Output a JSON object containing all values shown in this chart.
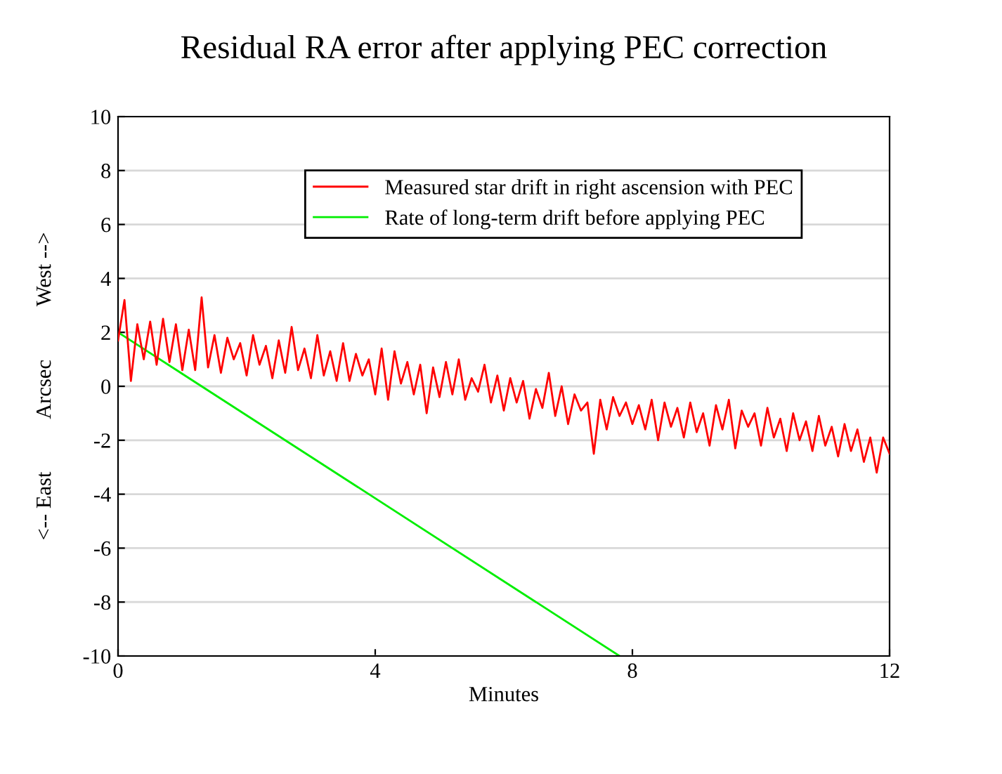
{
  "chart_data": {
    "type": "line",
    "title": "Residual RA error after applying PEC correction",
    "xlabel": "Minutes",
    "ylabel": "<-- East          Arcsec          West -->",
    "xlim": [
      0,
      12
    ],
    "ylim": [
      -10,
      10
    ],
    "xticks": [
      0,
      4,
      8,
      12
    ],
    "yticks": [
      -10,
      -8,
      -6,
      -4,
      -2,
      0,
      2,
      4,
      6,
      8,
      10
    ],
    "grid": "y",
    "legend": "top right",
    "marker": "none",
    "line_style": "solid",
    "series": [
      {
        "name": "Measured star drift in right ascension with PEC",
        "color": "#ff0000",
        "x": [
          0,
          0.1,
          0.2,
          0.3,
          0.4,
          0.5,
          0.6,
          0.7,
          0.8,
          0.9,
          1.0,
          1.1,
          1.2,
          1.3,
          1.4,
          1.5,
          1.6,
          1.7,
          1.8,
          1.9,
          2.0,
          2.1,
          2.2,
          2.3,
          2.4,
          2.5,
          2.6,
          2.7,
          2.8,
          2.9,
          3.0,
          3.1,
          3.2,
          3.3,
          3.4,
          3.5,
          3.6,
          3.7,
          3.8,
          3.9,
          4.0,
          4.1,
          4.2,
          4.3,
          4.4,
          4.5,
          4.6,
          4.7,
          4.8,
          4.9,
          5.0,
          5.1,
          5.2,
          5.3,
          5.4,
          5.5,
          5.6,
          5.7,
          5.8,
          5.9,
          6.0,
          6.1,
          6.2,
          6.3,
          6.4,
          6.5,
          6.6,
          6.7,
          6.8,
          6.9,
          7.0,
          7.1,
          7.2,
          7.3,
          7.4,
          7.5,
          7.6,
          7.7,
          7.8,
          7.9,
          8.0,
          8.1,
          8.2,
          8.3,
          8.4,
          8.5,
          8.6,
          8.7,
          8.8,
          8.9,
          9.0,
          9.1,
          9.2,
          9.3,
          9.4,
          9.5,
          9.6,
          9.7,
          9.8,
          9.9,
          10.0,
          10.1,
          10.2,
          10.3,
          10.4,
          10.5,
          10.6,
          10.7,
          10.8,
          10.9,
          11.0,
          11.1,
          11.2,
          11.3,
          11.4,
          11.5,
          11.6,
          11.7,
          11.8,
          11.9,
          12.0
        ],
        "values": [
          1.7,
          3.2,
          0.2,
          2.3,
          1.0,
          2.4,
          0.8,
          2.5,
          0.9,
          2.3,
          0.6,
          2.1,
          0.6,
          3.3,
          0.7,
          1.9,
          0.5,
          1.8,
          1.0,
          1.6,
          0.4,
          1.9,
          0.8,
          1.5,
          0.3,
          1.7,
          0.5,
          2.2,
          0.6,
          1.4,
          0.3,
          1.9,
          0.4,
          1.3,
          0.2,
          1.6,
          0.2,
          1.2,
          0.4,
          1.0,
          -0.3,
          1.4,
          -0.5,
          1.3,
          0.1,
          0.9,
          -0.3,
          0.8,
          -1.0,
          0.7,
          -0.4,
          0.9,
          -0.3,
          1.0,
          -0.5,
          0.3,
          -0.2,
          0.8,
          -0.6,
          0.4,
          -0.9,
          0.3,
          -0.6,
          0.2,
          -1.2,
          -0.1,
          -0.8,
          0.5,
          -1.1,
          0.0,
          -1.4,
          -0.3,
          -0.9,
          -0.6,
          -2.5,
          -0.5,
          -1.6,
          -0.4,
          -1.1,
          -0.6,
          -1.4,
          -0.7,
          -1.6,
          -0.5,
          -2.0,
          -0.6,
          -1.5,
          -0.8,
          -1.9,
          -0.6,
          -1.7,
          -1.0,
          -2.2,
          -0.7,
          -1.6,
          -0.5,
          -2.3,
          -0.9,
          -1.5,
          -1.0,
          -2.2,
          -0.8,
          -1.9,
          -1.2,
          -2.4,
          -1.0,
          -2.0,
          -1.3,
          -2.4,
          -1.1,
          -2.2,
          -1.5,
          -2.6,
          -1.4,
          -2.4,
          -1.6,
          -2.8,
          -1.9,
          -3.2,
          -1.9,
          -2.5
        ]
      },
      {
        "name": "Rate of long-term drift before applying PEC",
        "color": "#00ee00",
        "x": [
          0,
          7.8
        ],
        "values": [
          2.0,
          -10.0
        ]
      }
    ]
  }
}
